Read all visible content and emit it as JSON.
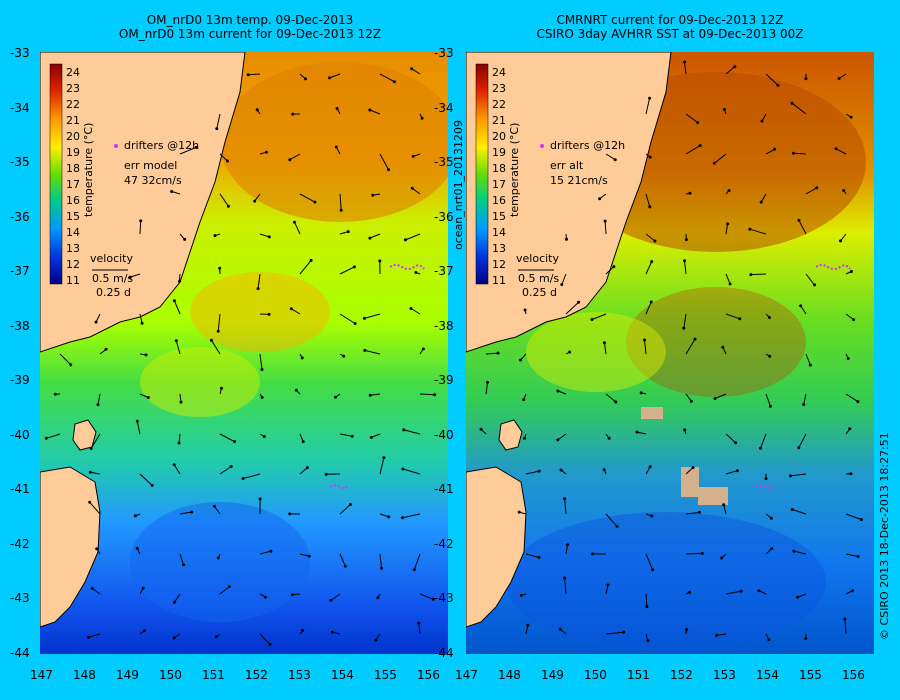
{
  "left_panel": {
    "title_line1": "OM_nrD0 13m temp. 09-Dec-2013",
    "title_line2": "OM_nrD0 13m current for 09-Dec-2013 12Z",
    "drifters_label": "drifters @12h",
    "err_label": "err model",
    "err_value": "47 32cm/s",
    "velocity_label": "velocity",
    "velocity_scale": "0.5 m/s",
    "velocity_time": "0.25 d"
  },
  "right_panel": {
    "title_line1": "CMRNRT current for 09-Dec-2013 12Z",
    "title_line2": "CSIRO 3day AVHRR SST at 09-Dec-2013 00Z",
    "drifters_label": "drifters @12h",
    "err_label": "err alt",
    "err_value": "15 21cm/s",
    "velocity_label": "velocity",
    "velocity_scale": "0.5 m/s",
    "velocity_time": "0.25 d"
  },
  "colorbar": {
    "label": "temperature (°C)",
    "ticks": [
      "24",
      "23",
      "22",
      "21",
      "20",
      "19",
      "18",
      "17",
      "16",
      "15",
      "14",
      "13",
      "12",
      "11"
    ]
  },
  "axes": {
    "lat_ticks": [
      "-33",
      "-34",
      "-35",
      "-36",
      "-37",
      "-38",
      "-39",
      "-40",
      "-41",
      "-42",
      "-43",
      "-44"
    ],
    "lon_ticks": [
      "147",
      "148",
      "149",
      "150",
      "151",
      "152",
      "153",
      "154",
      "155",
      "156"
    ]
  },
  "side_label_middle": "ocean_nrt01_20131209",
  "side_label_right": "© CSIRO 2013  18-Dec-2013 18:27:51",
  "colors": {
    "background": "#00ccff",
    "land": "#ffcc99",
    "drifters": "#cc33ff"
  }
}
